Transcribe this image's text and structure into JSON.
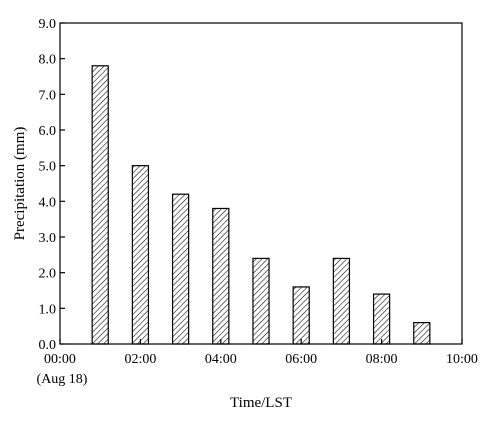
{
  "chart_data": {
    "type": "bar",
    "xlabel": "Time/LST",
    "ylabel": "Precipitation (mm)",
    "x_start_note": "(Aug 18)",
    "xlim": [
      0,
      10
    ],
    "ylim": [
      0,
      9
    ],
    "x_ticks": [
      {
        "value": 0,
        "label": "00:00"
      },
      {
        "value": 2,
        "label": "02:00"
      },
      {
        "value": 4,
        "label": "04:00"
      },
      {
        "value": 6,
        "label": "06:00"
      },
      {
        "value": 8,
        "label": "08:00"
      },
      {
        "value": 10,
        "label": "10:00"
      }
    ],
    "y_ticks": [
      {
        "value": 0,
        "label": "0.0"
      },
      {
        "value": 1,
        "label": "1.0"
      },
      {
        "value": 2,
        "label": "2.0"
      },
      {
        "value": 3,
        "label": "3.0"
      },
      {
        "value": 4,
        "label": "4.0"
      },
      {
        "value": 5,
        "label": "5.0"
      },
      {
        "value": 6,
        "label": "6.0"
      },
      {
        "value": 7,
        "label": "7.0"
      },
      {
        "value": 8,
        "label": "8.0"
      },
      {
        "value": 9,
        "label": "9.0"
      }
    ],
    "bar_width": 0.4,
    "x": [
      1,
      2,
      3,
      4,
      5,
      6,
      7,
      8,
      9
    ],
    "values": [
      7.8,
      5.0,
      4.2,
      3.8,
      2.4,
      1.6,
      2.4,
      1.4,
      0.6
    ],
    "bar_fill": "hatched",
    "grid": false
  }
}
